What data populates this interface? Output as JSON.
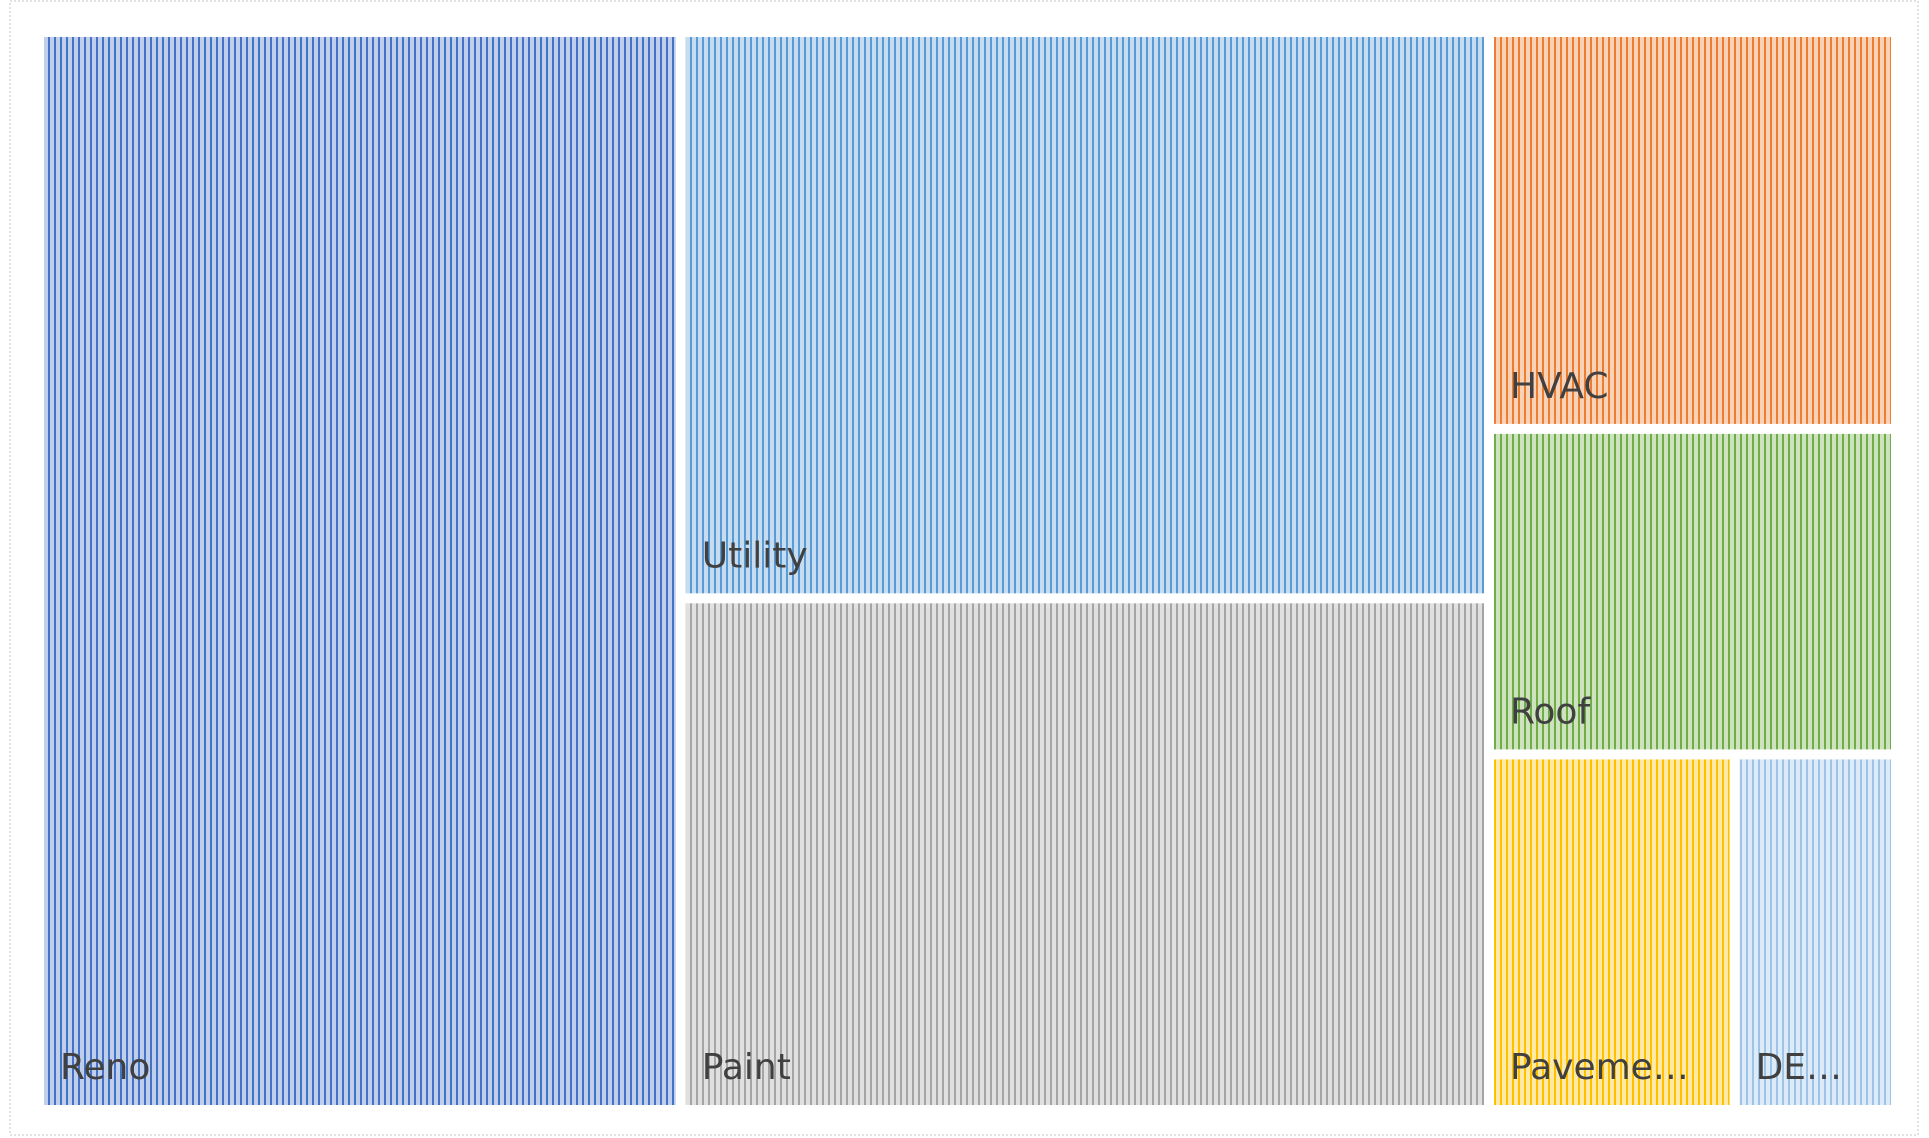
{
  "chart_data": {
    "type": "treemap",
    "categories": [
      "Reno",
      "Utility",
      "Paint",
      "HVAC",
      "Roof",
      "Paveme…",
      "DE…"
    ],
    "values": [
      444,
      295,
      266,
      103,
      84,
      56,
      36
    ],
    "colors": [
      "#4472c4",
      "#5b9bd5",
      "#a5a5a5",
      "#ed7d31",
      "#70ad47",
      "#ffc000",
      "#9dc3e6"
    ]
  }
}
